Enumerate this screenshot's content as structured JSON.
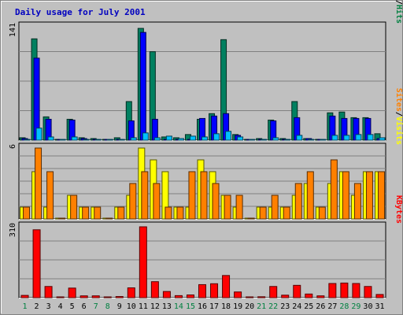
{
  "chart_data": {
    "type": "bar",
    "title": "Daily usage for July 2001",
    "days": [
      "1",
      "2",
      "3",
      "4",
      "5",
      "6",
      "7",
      "8",
      "9",
      "10",
      "11",
      "12",
      "13",
      "14",
      "15",
      "16",
      "17",
      "18",
      "19",
      "20",
      "21",
      "22",
      "23",
      "24",
      "25",
      "26",
      "27",
      "28",
      "29",
      "30",
      "31"
    ],
    "weekend_days": [
      "1",
      "7",
      "8",
      "14",
      "15",
      "21",
      "22",
      "28",
      "29"
    ],
    "panels": [
      {
        "id": "hits-files-pages",
        "ymax_label": "141",
        "ymax": 141,
        "right_label": [
          {
            "text": "Pages",
            "color": "#00c0ff"
          },
          {
            "text": "/",
            "color": "#000000"
          },
          {
            "text": "Files",
            "color": "#0000ff"
          },
          {
            "text": "/",
            "color": "#000000"
          },
          {
            "text": "Hits",
            "color": "#008040"
          }
        ],
        "series": [
          {
            "name": "Hits",
            "color": "#008060",
            "values": [
              3,
              126,
              29,
              1,
              26,
              3,
              2,
              0,
              3,
              48,
              139,
              110,
              4,
              3,
              7,
              26,
              33,
              125,
              7,
              0,
              2,
              25,
              2,
              48,
              2,
              1,
              34,
              35,
              28,
              28,
              8
            ]
          },
          {
            "name": "Files",
            "color": "#0000ff",
            "values": [
              2,
              102,
              26,
              0,
              25,
              2,
              1,
              0,
              1,
              24,
              134,
              26,
              1,
              0,
              1,
              27,
              30,
              33,
              6,
              0,
              1,
              24,
              1,
              28,
              2,
              1,
              30,
              27,
              27,
              27,
              2
            ]
          },
          {
            "name": "Pages",
            "color": "#00c0ff",
            "values": [
              1,
              15,
              4,
              0,
              4,
              0,
              0,
              0,
              0,
              3,
              9,
              3,
              5,
              2,
              5,
              4,
              8,
              11,
              4,
              0,
              1,
              3,
              1,
              6,
              1,
              0,
              6,
              6,
              7,
              7,
              3
            ]
          }
        ]
      },
      {
        "id": "visits-sites",
        "ymax_label": "6",
        "ymax": 6,
        "right_label": [
          {
            "text": "Sites",
            "color": "#ff8000"
          },
          {
            "text": "/",
            "color": "#000000"
          },
          {
            "text": "Visits",
            "color": "#ffff00"
          }
        ],
        "series": [
          {
            "name": "Visits",
            "color": "#ffff00",
            "values": [
              1,
              4,
              1,
              0,
              2,
              1,
              1,
              0,
              1,
              2,
              6,
              5,
              4,
              1,
              1,
              5,
              4,
              2,
              1,
              0,
              1,
              1,
              1,
              2,
              3,
              1,
              3,
              4,
              2,
              4,
              4
            ]
          },
          {
            "name": "Sites",
            "color": "#ff8000",
            "values": [
              1,
              6,
              4,
              0,
              2,
              1,
              1,
              0,
              1,
              3,
              4,
              3,
              1,
              1,
              4,
              4,
              3,
              2,
              2,
              0,
              1,
              2,
              1,
              3,
              4,
              1,
              5,
              4,
              3,
              4,
              4
            ]
          }
        ]
      },
      {
        "id": "kbytes",
        "ymax_label": "310",
        "ymax": 310,
        "right_label": [
          {
            "text": "KBytes",
            "color": "#ff0000"
          }
        ],
        "series": [
          {
            "name": "KBytes",
            "color": "#ff0000",
            "values": [
              10,
              297,
              49,
              0,
              42,
              8,
              8,
              0,
              5,
              43,
              310,
              70,
              27,
              9,
              12,
              57,
              61,
              97,
              25,
              0,
              4,
              49,
              11,
              54,
              16,
              8,
              62,
              64,
              62,
              49,
              14
            ]
          }
        ]
      }
    ]
  }
}
